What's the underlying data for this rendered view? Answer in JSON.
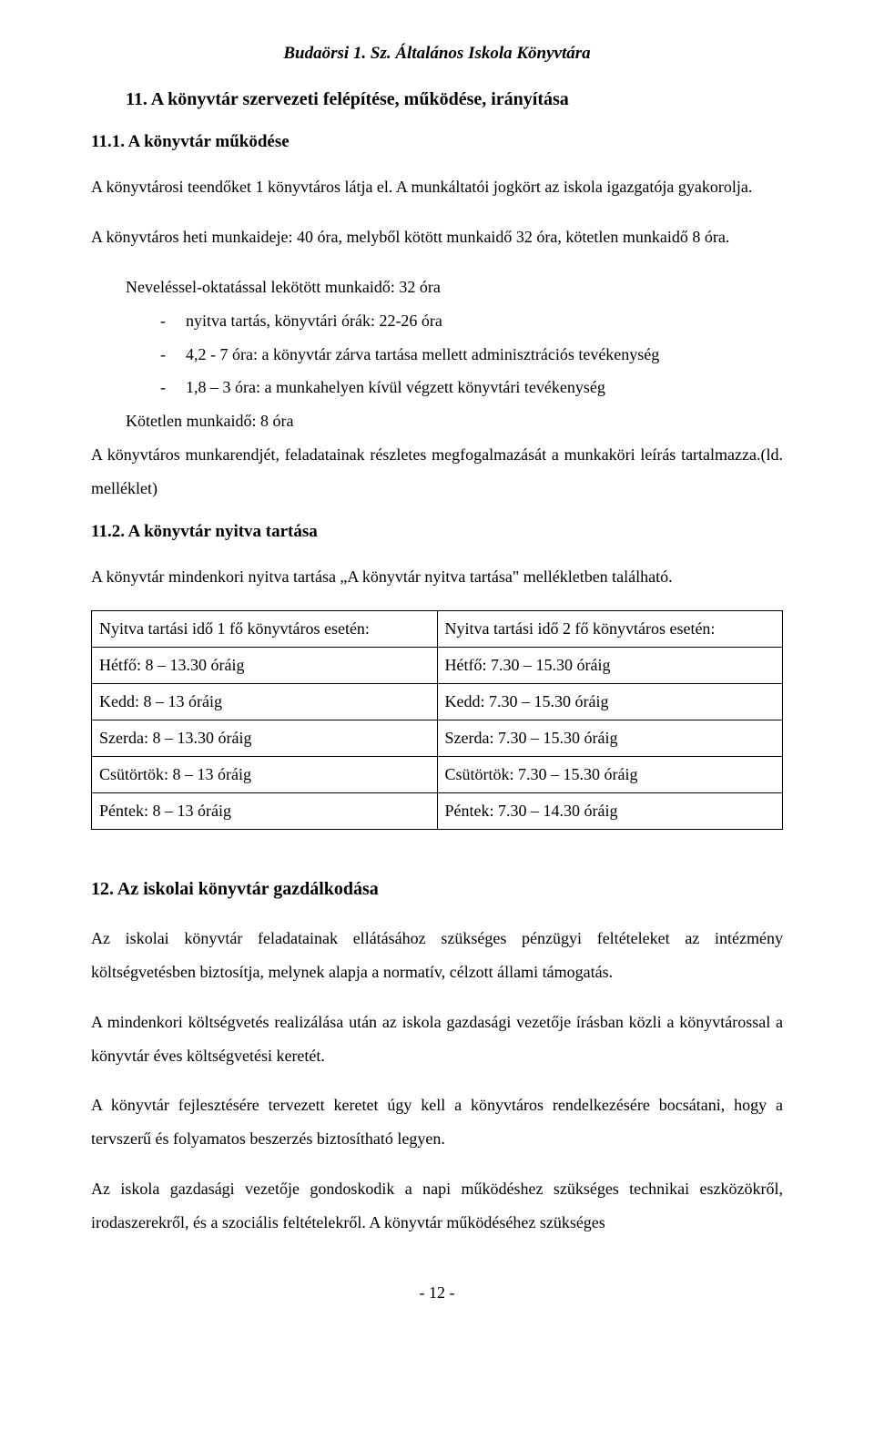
{
  "header": "Budaörsi 1. Sz. Általános Iskola Könyvtára",
  "section11": {
    "title": "11. A könyvtár szervezeti felépítése, működése, irányítása",
    "sub1": {
      "title": "11.1. A könyvtár működése",
      "p1": "A könyvtárosi teendőket 1 könyvtáros látja el. A munkáltatói jogkört az iskola igazgatója gyakorolja.",
      "p2": "A könyvtáros heti munkaideje: 40 óra, melyből kötött munkaidő 32 óra, kötetlen munkaidő 8 óra.",
      "list_lead": "Neveléssel-oktatással lekötött munkaidő: 32 óra",
      "b1": "nyitva tartás, könyvtári órák: 22-26 óra",
      "b2": "4,2 - 7 óra: a könyvtár zárva tartása mellett adminisztrációs tevékenység",
      "b3": "1,8 – 3 óra: a munkahelyen kívül végzett könyvtári tevékenység",
      "list_tail": "Kötetlen munkaidő:   8 óra",
      "p3": "A könyvtáros munkarendjét, feladatainak részletes megfogalmazását a munkaköri leírás tartalmazza.(ld. melléklet)"
    },
    "sub2": {
      "title": "11.2. A könyvtár nyitva tartása",
      "p1": "A könyvtár mindenkori nyitva tartása „A könyvtár nyitva tartása\" mellékletben található.",
      "table": {
        "col1_head": "Nyitva tartási idő 1 fő könyvtáros esetén:",
        "col2_head": "Nyitva tartási idő 2 fő könyvtáros esetén:",
        "rows": [
          {
            "c1": "Hétfő: 8 – 13.30 óráig",
            "c2": "Hétfő: 7.30 – 15.30 óráig"
          },
          {
            "c1": "Kedd: 8 – 13 óráig",
            "c2": "Kedd: 7.30 – 15.30 óráig"
          },
          {
            "c1": "Szerda: 8 – 13.30 óráig",
            "c2": "Szerda: 7.30 – 15.30 óráig"
          },
          {
            "c1": "Csütörtök: 8 – 13 óráig",
            "c2": "Csütörtök: 7.30 – 15.30 óráig"
          },
          {
            "c1": "Péntek: 8 – 13 óráig",
            "c2": "Péntek: 7.30 – 14.30 óráig"
          }
        ]
      }
    }
  },
  "section12": {
    "title": "12. Az iskolai könyvtár gazdálkodása",
    "p1": "Az iskolai könyvtár feladatainak ellátásához szükséges pénzügyi feltételeket az intézmény költségvetésben biztosítja, melynek alapja a normatív, célzott állami támogatás.",
    "p2": "A mindenkori költségvetés realizálása után az iskola gazdasági vezetője írásban közli a könyvtárossal a könyvtár éves költségvetési keretét.",
    "p3": "A könyvtár fejlesztésére tervezett keretet úgy kell a könyvtáros rendelkezésére bocsátani, hogy a tervszerű és folyamatos beszerzés biztosítható legyen.",
    "p4": "Az iskola gazdasági vezetője gondoskodik a napi működéshez szükséges technikai eszközökről, irodaszerekről, és a szociális feltételekről. A könyvtár működéséhez szükséges"
  },
  "pagenum": "- 12 -"
}
